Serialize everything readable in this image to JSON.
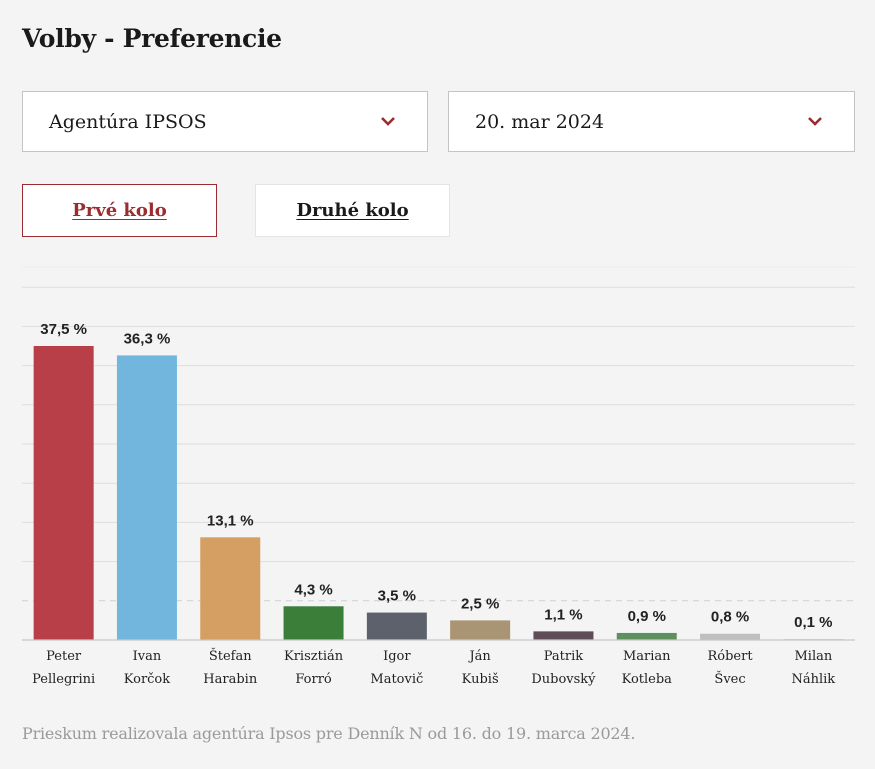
{
  "page": {
    "title": "Volby - Preferencie",
    "footer": "Prieskum realizovala agentúra Ipsos pre Denník N od 16. do 19. marca 2024."
  },
  "filters": {
    "agency": {
      "value": "Agentúra IPSOS",
      "icon": "chevron-down-icon"
    },
    "date": {
      "value": "20. mar 2024",
      "icon": "chevron-down-icon"
    }
  },
  "tabs": [
    {
      "label": "Prvé kolo",
      "active": true
    },
    {
      "label": "Druhé kolo",
      "active": false
    }
  ],
  "colors": {
    "accent": "#9b2d30",
    "gridline": "#dddddd",
    "baseline": "#c8c8c8"
  },
  "chart_data": {
    "type": "bar",
    "title": "",
    "xlabel": "",
    "ylabel": "",
    "ylim": [
      0,
      47.5
    ],
    "grid": true,
    "gridline_step": 5,
    "dashed_reference_line": 5,
    "legend": "none",
    "categories": [
      [
        "Peter",
        "Pellegrini"
      ],
      [
        "Ivan",
        "Korčok"
      ],
      [
        "Štefan",
        "Harabin"
      ],
      [
        "Krisztián",
        "Forró"
      ],
      [
        "Igor",
        "Matovič"
      ],
      [
        "Ján",
        "Kubiš"
      ],
      [
        "Patrik",
        "Dubovský"
      ],
      [
        "Marian",
        "Kotleba"
      ],
      [
        "Róbert",
        "Švec"
      ],
      [
        "Milan",
        "Náhlik"
      ]
    ],
    "values": [
      37.5,
      36.3,
      13.1,
      4.3,
      3.5,
      2.5,
      1.1,
      0.9,
      0.8,
      0.1
    ],
    "value_labels": [
      "37,5 %",
      "36,3 %",
      "13,1 %",
      "4,3 %",
      "3,5 %",
      "2,5 %",
      "1,1 %",
      "0,9 %",
      "0,8 %",
      "0,1 %"
    ],
    "bar_colors": [
      "#b83f47",
      "#72b6dd",
      "#d59f63",
      "#3a7e3a",
      "#5c616c",
      "#a99474",
      "#5e4c57",
      "#5e8f5c",
      "#bfbfbf",
      "#cfcfcf"
    ]
  }
}
